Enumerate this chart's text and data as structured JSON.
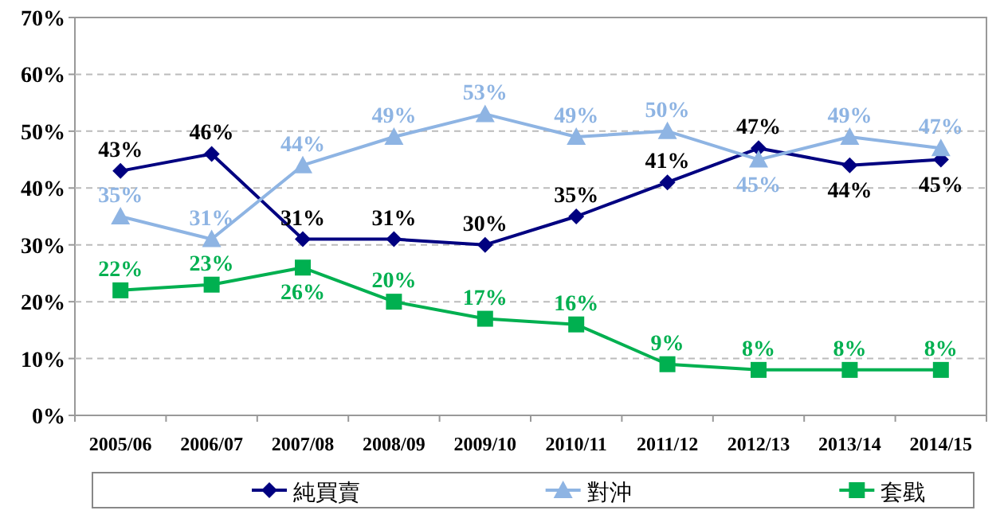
{
  "chart_data": {
    "type": "line",
    "categories": [
      "2005/06",
      "2006/07",
      "2007/08",
      "2008/09",
      "2009/10",
      "2010/11",
      "2011/12",
      "2012/13",
      "2013/14",
      "2014/15"
    ],
    "series": [
      {
        "name": "純買賣",
        "color": "#000080",
        "marker": "diamond",
        "values": [
          43,
          46,
          31,
          31,
          30,
          35,
          41,
          47,
          44,
          45
        ],
        "value_labels": [
          "43%",
          "46%",
          "31%",
          "31%",
          "30%",
          "35%",
          "41%",
          "47%",
          "44%",
          "45%"
        ]
      },
      {
        "name": "對沖",
        "color": "#8eb4e3",
        "marker": "triangle",
        "values": [
          35,
          31,
          44,
          49,
          53,
          49,
          50,
          45,
          49,
          47
        ],
        "value_labels": [
          "35%",
          "31%",
          "44%",
          "49%",
          "53%",
          "49%",
          "50%",
          "45%",
          "49%",
          "47%"
        ]
      },
      {
        "name": "套戥",
        "color": "#00b050",
        "marker": "square",
        "values": [
          22,
          23,
          26,
          20,
          17,
          16,
          9,
          8,
          8,
          8
        ],
        "value_labels": [
          "22%",
          "23%",
          "26%",
          "20%",
          "17%",
          "16%",
          "9%",
          "8%",
          "8%",
          "8%"
        ]
      }
    ],
    "ylim": [
      0,
      70
    ],
    "yticks": [
      {
        "value": 0,
        "label": "0%"
      },
      {
        "value": 10,
        "label": "10%"
      },
      {
        "value": 20,
        "label": "20%"
      },
      {
        "value": 30,
        "label": "30%"
      },
      {
        "value": 40,
        "label": "40%"
      },
      {
        "value": 50,
        "label": "50%"
      },
      {
        "value": 60,
        "label": "60%"
      },
      {
        "value": 70,
        "label": "70%"
      }
    ],
    "grid": "y",
    "legend": "bottom"
  }
}
